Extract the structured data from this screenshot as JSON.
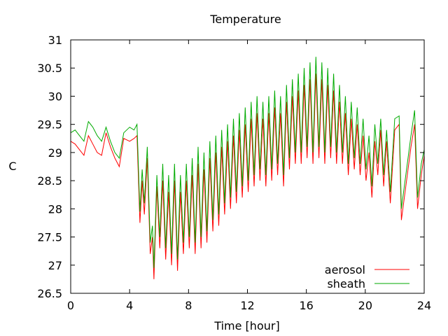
{
  "chart_data": {
    "type": "line",
    "title": "Temperature",
    "xlabel": "Time [hour]",
    "ylabel": "C",
    "xlim": [
      0,
      24
    ],
    "ylim": [
      26.5,
      31
    ],
    "x_ticks": [
      0,
      4,
      8,
      12,
      16,
      20,
      24
    ],
    "y_ticks": [
      26.5,
      27,
      27.5,
      28,
      28.5,
      29,
      29.5,
      30,
      30.5,
      31
    ],
    "grid": false,
    "legend_position": "bottom-right",
    "series": [
      {
        "name": "aerosol",
        "color": "#ff0000",
        "points": [
          [
            0.0,
            29.2
          ],
          [
            0.3,
            29.15
          ],
          [
            0.6,
            29.05
          ],
          [
            0.9,
            28.95
          ],
          [
            1.2,
            29.3
          ],
          [
            1.5,
            29.15
          ],
          [
            1.8,
            29.0
          ],
          [
            2.1,
            28.95
          ],
          [
            2.4,
            29.35
          ],
          [
            2.7,
            29.1
          ],
          [
            3.0,
            28.9
          ],
          [
            3.3,
            28.75
          ],
          [
            3.6,
            29.25
          ],
          [
            4.0,
            29.2
          ],
          [
            4.3,
            29.25
          ],
          [
            4.5,
            29.3
          ],
          [
            4.7,
            27.75
          ],
          [
            4.85,
            28.5
          ],
          [
            5.0,
            27.9
          ],
          [
            5.2,
            28.9
          ],
          [
            5.4,
            27.2
          ],
          [
            5.55,
            27.5
          ],
          [
            5.65,
            26.75
          ],
          [
            5.85,
            28.4
          ],
          [
            6.05,
            27.3
          ],
          [
            6.25,
            28.5
          ],
          [
            6.45,
            27.1
          ],
          [
            6.65,
            28.3
          ],
          [
            6.85,
            27.0
          ],
          [
            7.05,
            28.5
          ],
          [
            7.25,
            26.9
          ],
          [
            7.45,
            28.3
          ],
          [
            7.65,
            27.2
          ],
          [
            7.85,
            28.5
          ],
          [
            8.05,
            27.3
          ],
          [
            8.25,
            28.6
          ],
          [
            8.45,
            27.2
          ],
          [
            8.65,
            28.8
          ],
          [
            8.85,
            27.3
          ],
          [
            9.05,
            28.7
          ],
          [
            9.25,
            27.4
          ],
          [
            9.45,
            28.9
          ],
          [
            9.65,
            27.6
          ],
          [
            9.85,
            29.0
          ],
          [
            10.05,
            27.7
          ],
          [
            10.25,
            29.1
          ],
          [
            10.45,
            27.9
          ],
          [
            10.65,
            29.2
          ],
          [
            10.85,
            28.0
          ],
          [
            11.05,
            29.3
          ],
          [
            11.25,
            28.1
          ],
          [
            11.45,
            29.4
          ],
          [
            11.65,
            28.2
          ],
          [
            11.85,
            29.5
          ],
          [
            12.05,
            28.3
          ],
          [
            12.25,
            29.6
          ],
          [
            12.45,
            28.4
          ],
          [
            12.65,
            29.7
          ],
          [
            12.85,
            28.5
          ],
          [
            13.05,
            29.6
          ],
          [
            13.25,
            28.4
          ],
          [
            13.45,
            29.7
          ],
          [
            13.65,
            28.5
          ],
          [
            13.85,
            29.8
          ],
          [
            14.05,
            28.6
          ],
          [
            14.25,
            29.7
          ],
          [
            14.45,
            28.4
          ],
          [
            14.65,
            29.9
          ],
          [
            14.85,
            28.7
          ],
          [
            15.05,
            30.0
          ],
          [
            15.25,
            28.8
          ],
          [
            15.45,
            30.1
          ],
          [
            15.65,
            28.8
          ],
          [
            15.85,
            30.2
          ],
          [
            16.05,
            28.9
          ],
          [
            16.25,
            30.3
          ],
          [
            16.45,
            28.8
          ],
          [
            16.65,
            30.4
          ],
          [
            16.85,
            28.9
          ],
          [
            17.05,
            30.3
          ],
          [
            17.25,
            28.8
          ],
          [
            17.45,
            30.2
          ],
          [
            17.65,
            28.9
          ],
          [
            17.85,
            30.1
          ],
          [
            18.05,
            28.8
          ],
          [
            18.25,
            29.9
          ],
          [
            18.45,
            28.8
          ],
          [
            18.65,
            29.7
          ],
          [
            18.85,
            28.6
          ],
          [
            19.05,
            29.6
          ],
          [
            19.25,
            28.7
          ],
          [
            19.45,
            29.5
          ],
          [
            19.65,
            28.6
          ],
          [
            19.85,
            29.3
          ],
          [
            20.05,
            28.5
          ],
          [
            20.25,
            29.0
          ],
          [
            20.45,
            28.2
          ],
          [
            20.65,
            29.2
          ],
          [
            20.85,
            28.6
          ],
          [
            21.05,
            29.4
          ],
          [
            21.25,
            28.4
          ],
          [
            21.45,
            29.2
          ],
          [
            21.7,
            28.1
          ],
          [
            22.0,
            29.4
          ],
          [
            22.3,
            29.5
          ],
          [
            22.45,
            27.8
          ],
          [
            22.8,
            28.5
          ],
          [
            23.1,
            29.1
          ],
          [
            23.35,
            29.5
          ],
          [
            23.55,
            28.0
          ],
          [
            23.8,
            28.6
          ],
          [
            24.0,
            28.95
          ]
        ]
      },
      {
        "name": "sheath",
        "color": "#00aa00",
        "points": [
          [
            0.0,
            29.35
          ],
          [
            0.3,
            29.4
          ],
          [
            0.6,
            29.3
          ],
          [
            0.9,
            29.2
          ],
          [
            1.2,
            29.55
          ],
          [
            1.5,
            29.45
          ],
          [
            1.8,
            29.3
          ],
          [
            2.1,
            29.2
          ],
          [
            2.4,
            29.45
          ],
          [
            2.7,
            29.2
          ],
          [
            3.0,
            29.0
          ],
          [
            3.3,
            28.9
          ],
          [
            3.6,
            29.35
          ],
          [
            4.0,
            29.45
          ],
          [
            4.3,
            29.4
          ],
          [
            4.5,
            29.5
          ],
          [
            4.7,
            27.95
          ],
          [
            4.85,
            28.7
          ],
          [
            5.0,
            28.1
          ],
          [
            5.2,
            29.1
          ],
          [
            5.4,
            27.4
          ],
          [
            5.55,
            27.7
          ],
          [
            5.65,
            26.95
          ],
          [
            5.85,
            28.6
          ],
          [
            6.05,
            27.5
          ],
          [
            6.25,
            28.8
          ],
          [
            6.45,
            27.3
          ],
          [
            6.65,
            28.6
          ],
          [
            6.85,
            27.2
          ],
          [
            7.05,
            28.8
          ],
          [
            7.25,
            27.1
          ],
          [
            7.45,
            28.6
          ],
          [
            7.65,
            27.4
          ],
          [
            7.85,
            28.8
          ],
          [
            8.05,
            27.5
          ],
          [
            8.25,
            28.9
          ],
          [
            8.45,
            27.4
          ],
          [
            8.65,
            29.1
          ],
          [
            8.85,
            27.5
          ],
          [
            9.05,
            29.0
          ],
          [
            9.25,
            27.6
          ],
          [
            9.45,
            29.2
          ],
          [
            9.65,
            27.8
          ],
          [
            9.85,
            29.3
          ],
          [
            10.05,
            27.9
          ],
          [
            10.25,
            29.4
          ],
          [
            10.45,
            28.1
          ],
          [
            10.65,
            29.5
          ],
          [
            10.85,
            28.2
          ],
          [
            11.05,
            29.6
          ],
          [
            11.25,
            28.3
          ],
          [
            11.45,
            29.7
          ],
          [
            11.65,
            28.4
          ],
          [
            11.85,
            29.8
          ],
          [
            12.05,
            28.5
          ],
          [
            12.25,
            29.9
          ],
          [
            12.45,
            28.6
          ],
          [
            12.65,
            30.0
          ],
          [
            12.85,
            28.7
          ],
          [
            13.05,
            29.9
          ],
          [
            13.25,
            28.6
          ],
          [
            13.45,
            30.0
          ],
          [
            13.65,
            28.7
          ],
          [
            13.85,
            30.1
          ],
          [
            14.05,
            28.8
          ],
          [
            14.25,
            30.0
          ],
          [
            14.45,
            28.6
          ],
          [
            14.65,
            30.2
          ],
          [
            14.85,
            28.9
          ],
          [
            15.05,
            30.3
          ],
          [
            15.25,
            29.0
          ],
          [
            15.45,
            30.4
          ],
          [
            15.65,
            29.0
          ],
          [
            15.85,
            30.5
          ],
          [
            16.05,
            29.1
          ],
          [
            16.25,
            30.6
          ],
          [
            16.45,
            29.0
          ],
          [
            16.65,
            30.7
          ],
          [
            16.85,
            29.1
          ],
          [
            17.05,
            30.6
          ],
          [
            17.25,
            29.0
          ],
          [
            17.45,
            30.5
          ],
          [
            17.65,
            29.1
          ],
          [
            17.85,
            30.4
          ],
          [
            18.05,
            29.0
          ],
          [
            18.25,
            30.2
          ],
          [
            18.45,
            29.0
          ],
          [
            18.65,
            30.0
          ],
          [
            18.85,
            28.8
          ],
          [
            19.05,
            29.9
          ],
          [
            19.25,
            28.9
          ],
          [
            19.45,
            29.8
          ],
          [
            19.65,
            28.8
          ],
          [
            19.85,
            29.6
          ],
          [
            20.05,
            28.7
          ],
          [
            20.25,
            29.3
          ],
          [
            20.45,
            28.4
          ],
          [
            20.65,
            29.5
          ],
          [
            20.85,
            28.8
          ],
          [
            21.05,
            29.6
          ],
          [
            21.25,
            28.6
          ],
          [
            21.45,
            29.4
          ],
          [
            21.7,
            28.3
          ],
          [
            22.0,
            29.6
          ],
          [
            22.3,
            29.65
          ],
          [
            22.45,
            28.0
          ],
          [
            22.8,
            28.7
          ],
          [
            23.1,
            29.3
          ],
          [
            23.35,
            29.75
          ],
          [
            23.55,
            28.2
          ],
          [
            23.8,
            28.8
          ],
          [
            24.0,
            29.05
          ]
        ]
      }
    ]
  }
}
